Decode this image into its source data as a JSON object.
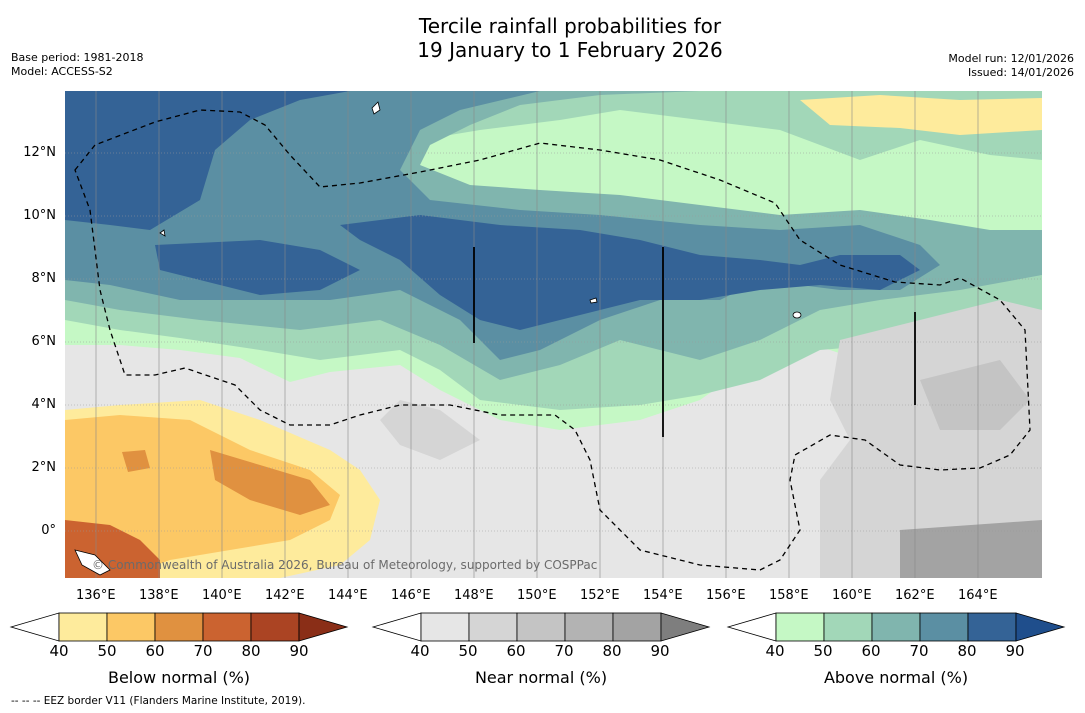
{
  "title": {
    "line1": "Tercile rainfall probabilities for",
    "line2": "19 January to 1 February 2026"
  },
  "meta_left": {
    "base_period": "Base period: 1981-2018",
    "model": "Model: ACCESS-S2"
  },
  "meta_right": {
    "model_run": "Model run: 12/01/2026",
    "issued": "Issued: 14/01/2026"
  },
  "map": {
    "y_ticks": [
      "12°N",
      "10°N",
      "8°N",
      "6°N",
      "4°N",
      "2°N",
      "0°"
    ],
    "x_ticks": [
      "136°E",
      "138°E",
      "140°E",
      "142°E",
      "144°E",
      "146°E",
      "148°E",
      "150°E",
      "152°E",
      "154°E",
      "156°E",
      "158°E",
      "160°E",
      "162°E",
      "164°E"
    ],
    "watermark": "© Commonwealth of Australia 2026, Bureau of Meteorology, supported by COSPPac"
  },
  "colorbars": {
    "below": {
      "title": "Below normal (%)",
      "ticks": [
        "40",
        "50",
        "60",
        "70",
        "80",
        "90"
      ],
      "colors": [
        "#ffffff",
        "#feeb9c",
        "#fcc865",
        "#e09140",
        "#cb6330",
        "#ab4423",
        "#8a2e17"
      ]
    },
    "near": {
      "title": "Near normal (%)",
      "ticks": [
        "40",
        "50",
        "60",
        "70",
        "80",
        "90"
      ],
      "colors": [
        "#ffffff",
        "#e6e6e6",
        "#d5d5d5",
        "#c4c4c4",
        "#b3b3b3",
        "#a3a3a3",
        "#7e7e7e"
      ]
    },
    "above": {
      "title": "Above normal (%)",
      "ticks": [
        "40",
        "50",
        "60",
        "70",
        "80",
        "90"
      ],
      "colors": [
        "#ffffff",
        "#c5f8c5",
        "#a2d7b8",
        "#80b5ae",
        "#5b8fa3",
        "#346396",
        "#1f4e8c"
      ]
    }
  },
  "footnote": "--  --  -- EEZ border V11 (Flanders Marine Institute, 2019)."
}
